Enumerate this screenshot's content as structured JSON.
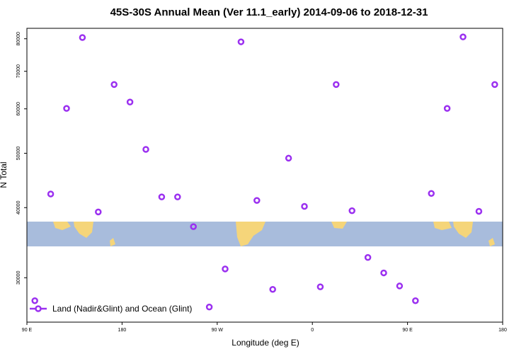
{
  "chart_data": {
    "type": "scatter",
    "title": "45S-30S Annual Mean (Ver 11.1_early)   2014-09-06 to 2018-12-31",
    "x_label": "Longitude (deg E)",
    "y_label": "N Total",
    "log_y": true,
    "legend": "bottom-left",
    "xlim": [
      90,
      540
    ],
    "xticks": [
      {
        "value": 90,
        "label": "90 E"
      },
      180,
      {
        "value": 270,
        "label": "90 W"
      },
      {
        "value": 360,
        "label": "0"
      },
      {
        "value": 450,
        "label": "90 E"
      },
      {
        "value": 540,
        "label": "180"
      }
    ],
    "ylim": [
      25000,
      83500
    ],
    "yticks": [
      30000,
      40000,
      50000,
      60000,
      70000,
      80000
    ],
    "series": [
      {
        "name": "Land (Nadir&Glint) and Ocean (Glint)",
        "color": "#9b30f0",
        "x": [
          97.5,
          112.5,
          127.5,
          142.5,
          157.5,
          172.5,
          187.5,
          202.5,
          217.5,
          232.5,
          247.5,
          262.5,
          277.5,
          292.5,
          307.5,
          322.5,
          337.5,
          352.5,
          367.5,
          382.5,
          397.5,
          412.5,
          427.5,
          442.5,
          457.5,
          472.5,
          487.5,
          502.5,
          517.5,
          532.5
        ],
        "values": [
          27300,
          42300,
          60100,
          80400,
          39300,
          66300,
          61700,
          50800,
          41800,
          41800,
          37000,
          26600,
          31100,
          79000,
          41200,
          28600,
          49000,
          40200,
          28900,
          66300,
          39500,
          32600,
          30600,
          29000,
          27300,
          42400,
          60100,
          80600,
          39400,
          66300
        ]
      }
    ]
  }
}
